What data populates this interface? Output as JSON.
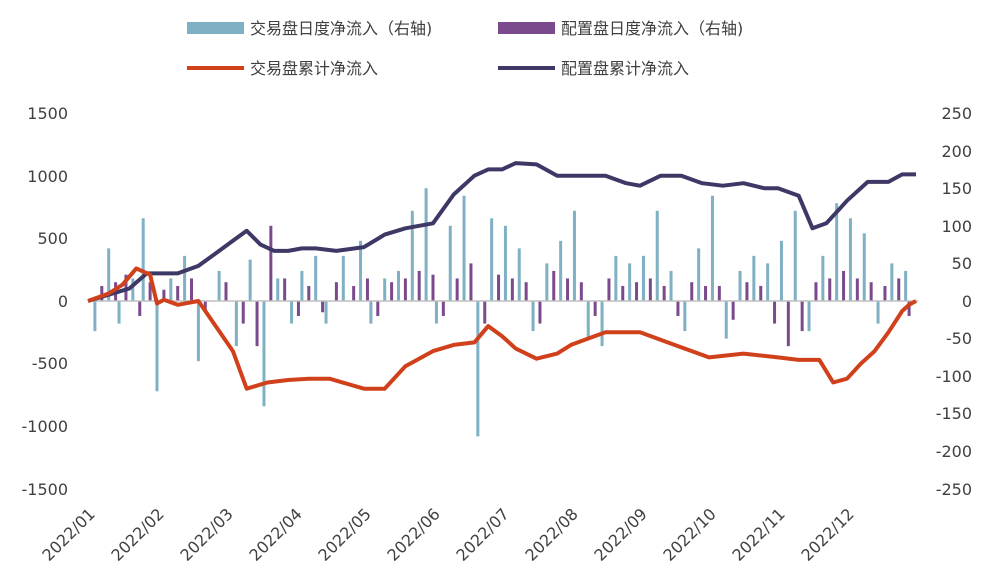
{
  "chart_data": {
    "type": "bar+line",
    "title": "",
    "colors": {
      "trading_bar": "#7FB0C4",
      "allocation_bar": "#7B4A8C",
      "trading_line": "#D0411B",
      "allocation_line": "#3E3866",
      "zero_line": "#BFBFBF"
    },
    "legend": [
      {
        "key": "trading_daily",
        "label": "交易盘日度净流入（右轴)",
        "kind": "bar"
      },
      {
        "key": "allocation_daily",
        "label": "配置盘日度净流入（右轴)",
        "kind": "bar"
      },
      {
        "key": "trading_cum",
        "label": "交易盘累计净流入",
        "kind": "line"
      },
      {
        "key": "allocation_cum",
        "label": "配置盘累计净流入",
        "kind": "line"
      }
    ],
    "left_axis": {
      "min": -1500,
      "max": 1500,
      "ticks": [
        1500,
        1000,
        500,
        0,
        -500,
        -1000,
        -1500
      ],
      "tick_labels": [
        "1500",
        "1000",
        "500",
        "0",
        "-500",
        "-1000",
        "-1500"
      ]
    },
    "right_axis": {
      "min": -250,
      "max": 250,
      "ticks": [
        250,
        200,
        150,
        100,
        50,
        0,
        -50,
        -100,
        -150,
        -200,
        -250
      ],
      "tick_labels": [
        "250",
        "200",
        "150",
        "100",
        "50",
        "0",
        "-50",
        "-100",
        "-150",
        "-200",
        "-250"
      ]
    },
    "x_axis": {
      "tick_labels": [
        "2022/01",
        "2022/02",
        "2022/03",
        "2022/04",
        "2022/05",
        "2022/06",
        "2022/07",
        "2022/08",
        "2022/09",
        "2022/10",
        "2022/11",
        "2022/12"
      ]
    },
    "series": {
      "trading_cum": {
        "name": "交易盘累计净流入",
        "axis": "left",
        "x": [
          0,
          0.3,
          0.5,
          0.7,
          0.9,
          1.0,
          1.1,
          1.3,
          1.6,
          1.85,
          2.1,
          2.3,
          2.6,
          2.9,
          3.2,
          3.5,
          4.0,
          4.3,
          4.6,
          5.0,
          5.3,
          5.6,
          5.8,
          6.0,
          6.2,
          6.5,
          6.8,
          7.0,
          7.3,
          7.5,
          8.0,
          8.5,
          9.0,
          9.5,
          10.0,
          10.3,
          10.6,
          10.8,
          11.0,
          11.2,
          11.4,
          11.6,
          11.8,
          11.9,
          12.0
        ],
        "values": [
          0,
          60,
          130,
          260,
          210,
          -20,
          10,
          -30,
          0,
          -200,
          -400,
          -700,
          -650,
          -630,
          -620,
          -620,
          -700,
          -700,
          -520,
          -400,
          -350,
          -330,
          -200,
          -280,
          -380,
          -460,
          -420,
          -350,
          -290,
          -250,
          -250,
          -350,
          -450,
          -420,
          -450,
          -470,
          -470,
          -650,
          -620,
          -500,
          -400,
          -250,
          -80,
          -30,
          0
        ]
      },
      "allocation_cum": {
        "name": "配置盘累计净流入",
        "axis": "left",
        "x": [
          0,
          0.3,
          0.6,
          0.85,
          1.0,
          1.3,
          1.6,
          1.9,
          2.1,
          2.3,
          2.5,
          2.7,
          2.9,
          3.1,
          3.3,
          3.6,
          4.0,
          4.3,
          4.6,
          5.0,
          5.3,
          5.6,
          5.8,
          6.0,
          6.2,
          6.5,
          6.8,
          7.0,
          7.3,
          7.5,
          7.8,
          8.0,
          8.3,
          8.6,
          8.9,
          9.2,
          9.5,
          9.8,
          10.0,
          10.3,
          10.5,
          10.7,
          10.9,
          11.0,
          11.3,
          11.6,
          11.8,
          12.0
        ],
        "values": [
          0,
          50,
          100,
          220,
          220,
          220,
          280,
          400,
          480,
          560,
          450,
          400,
          400,
          420,
          420,
          400,
          430,
          530,
          580,
          620,
          850,
          1000,
          1050,
          1050,
          1100,
          1090,
          1000,
          1000,
          1000,
          1000,
          940,
          920,
          1000,
          1000,
          940,
          920,
          940,
          900,
          900,
          840,
          580,
          620,
          740,
          800,
          950,
          950,
          1010,
          1010
        ]
      },
      "trading_daily": {
        "name": "交易盘日度净流入（右轴)",
        "axis": "right",
        "x": [
          0.1,
          0.3,
          0.45,
          0.65,
          0.8,
          1.0,
          1.2,
          1.4,
          1.6,
          1.9,
          2.15,
          2.35,
          2.55,
          2.75,
          2.95,
          3.1,
          3.3,
          3.45,
          3.7,
          3.95,
          4.1,
          4.3,
          4.5,
          4.7,
          4.9,
          5.05,
          5.25,
          5.45,
          5.65,
          5.85,
          6.05,
          6.25,
          6.45,
          6.65,
          6.85,
          7.05,
          7.25,
          7.45,
          7.65,
          7.85,
          8.05,
          8.25,
          8.45,
          8.65,
          8.85,
          9.05,
          9.25,
          9.45,
          9.65,
          9.85,
          10.05,
          10.25,
          10.45,
          10.65,
          10.85,
          11.05,
          11.25,
          11.45,
          11.65,
          11.85
        ],
        "values": [
          -40,
          70,
          -30,
          30,
          110,
          -120,
          30,
          60,
          -80,
          40,
          -60,
          55,
          -140,
          30,
          -30,
          40,
          60,
          -30,
          60,
          80,
          -30,
          30,
          40,
          120,
          150,
          -30,
          100,
          140,
          -180,
          110,
          100,
          70,
          -40,
          50,
          80,
          120,
          -50,
          -60,
          60,
          50,
          60,
          120,
          40,
          -40,
          70,
          140,
          -50,
          40,
          60,
          50,
          80,
          120,
          -40,
          60,
          130,
          110,
          90,
          -30,
          50,
          40
        ]
      },
      "allocation_daily": {
        "name": "配置盘日度净流入（右轴)",
        "axis": "right",
        "x": [
          0.2,
          0.4,
          0.55,
          0.75,
          0.9,
          1.1,
          1.3,
          1.5,
          1.7,
          2.0,
          2.25,
          2.45,
          2.65,
          2.85,
          3.05,
          3.2,
          3.4,
          3.6,
          3.85,
          4.05,
          4.2,
          4.4,
          4.6,
          4.8,
          5.0,
          5.15,
          5.35,
          5.55,
          5.75,
          5.95,
          6.15,
          6.35,
          6.55,
          6.75,
          6.95,
          7.15,
          7.35,
          7.55,
          7.75,
          7.95,
          8.15,
          8.35,
          8.55,
          8.75,
          8.95,
          9.15,
          9.35,
          9.55,
          9.75,
          9.95,
          10.15,
          10.35,
          10.55,
          10.75,
          10.95,
          11.15,
          11.35,
          11.55,
          11.75,
          11.9
        ],
        "values": [
          20,
          25,
          35,
          -20,
          25,
          15,
          20,
          30,
          -15,
          25,
          -30,
          -60,
          100,
          30,
          -20,
          20,
          -15,
          25,
          20,
          30,
          -20,
          25,
          30,
          40,
          35,
          -20,
          30,
          50,
          -30,
          35,
          30,
          25,
          -30,
          40,
          30,
          25,
          -20,
          30,
          20,
          25,
          30,
          20,
          -20,
          25,
          20,
          20,
          -25,
          25,
          20,
          -30,
          -60,
          -40,
          25,
          30,
          40,
          30,
          25,
          20,
          30,
          -20
        ]
      }
    }
  }
}
